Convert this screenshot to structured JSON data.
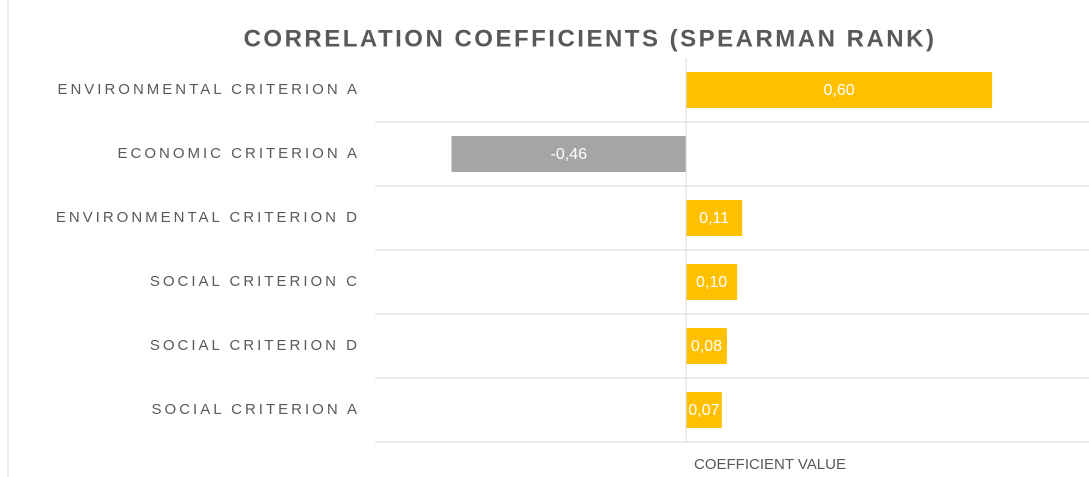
{
  "chart_data": {
    "type": "hbar",
    "title": "CORRELATION COEFFICIENTS (SPEARMAN RANK)",
    "x_label": "COEFFICIENT VALUE",
    "categories": [
      "ENVIRONMENTAL CRITERION A",
      "ECONOMIC CRITERION A",
      "ENVIRONMENTAL CRITERION D",
      "SOCIAL CRITERION C",
      "SOCIAL CRITERION D",
      "SOCIAL CRITERION A"
    ],
    "values": [
      0.6,
      -0.46,
      0.11,
      0.1,
      0.08,
      0.07
    ],
    "value_labels": [
      "0,60",
      "-0,46",
      "0,11",
      "0,10",
      "0,08",
      "0,07"
    ],
    "colors": [
      "#FFC000",
      "#A5A5A5",
      "#FFC000",
      "#FFC000",
      "#FFC000",
      "#FFC000"
    ],
    "xlim": [
      -0.61,
      0.79
    ]
  }
}
